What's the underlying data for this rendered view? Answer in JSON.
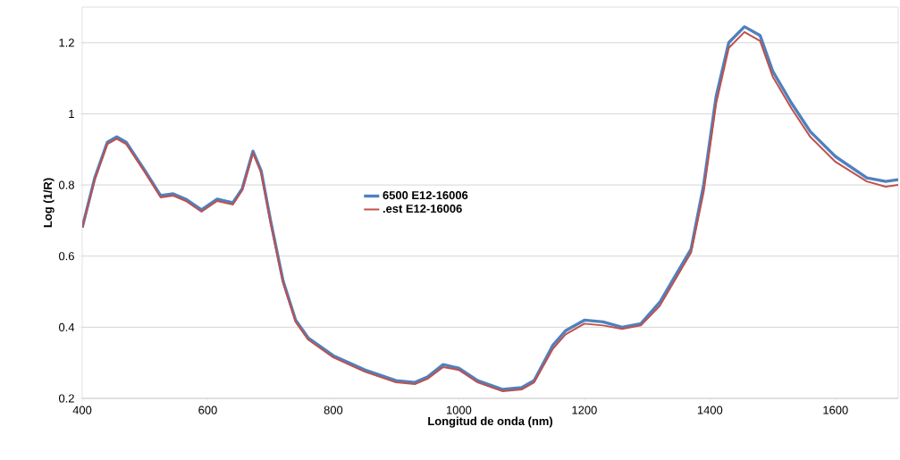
{
  "chart_data": {
    "type": "line",
    "xlabel": "Longitud de onda (nm)",
    "ylabel": "Log (1/R)",
    "xlim": [
      400,
      1700
    ],
    "ylim": [
      0.2,
      1.3
    ],
    "xticks": [
      400,
      600,
      800,
      1000,
      1200,
      1400,
      1600
    ],
    "yticks": [
      0.2,
      0.4,
      0.6,
      0.8,
      1,
      1.2
    ],
    "grid": "y",
    "legend": "center",
    "line_style": "solid",
    "marker": "none",
    "series": [
      {
        "name": "6500 E12-16006",
        "color": "#4f81bd",
        "x": [
          400,
          420,
          440,
          455,
          470,
          500,
          525,
          545,
          565,
          590,
          615,
          640,
          655,
          672,
          685,
          700,
          720,
          740,
          760,
          800,
          850,
          900,
          930,
          950,
          975,
          1000,
          1030,
          1070,
          1100,
          1120,
          1150,
          1170,
          1200,
          1230,
          1260,
          1290,
          1320,
          1350,
          1370,
          1390,
          1410,
          1430,
          1455,
          1480,
          1500,
          1530,
          1560,
          1600,
          1650,
          1680,
          1700
        ],
        "values": [
          0.68,
          0.82,
          0.92,
          0.935,
          0.92,
          0.84,
          0.77,
          0.775,
          0.76,
          0.73,
          0.76,
          0.75,
          0.79,
          0.895,
          0.84,
          0.7,
          0.53,
          0.42,
          0.37,
          0.32,
          0.28,
          0.25,
          0.245,
          0.26,
          0.295,
          0.285,
          0.25,
          0.225,
          0.23,
          0.25,
          0.35,
          0.39,
          0.42,
          0.415,
          0.4,
          0.41,
          0.47,
          0.56,
          0.62,
          0.8,
          1.05,
          1.2,
          1.245,
          1.22,
          1.12,
          1.03,
          0.95,
          0.88,
          0.82,
          0.81,
          0.815
        ]
      },
      {
        "name": ".est E12-16006",
        "color": "#c0504d",
        "x": [
          400,
          420,
          440,
          455,
          470,
          500,
          525,
          545,
          565,
          590,
          615,
          640,
          655,
          672,
          685,
          700,
          720,
          740,
          760,
          800,
          850,
          900,
          930,
          950,
          975,
          1000,
          1030,
          1070,
          1100,
          1120,
          1150,
          1170,
          1200,
          1230,
          1260,
          1290,
          1320,
          1350,
          1370,
          1390,
          1410,
          1430,
          1455,
          1480,
          1500,
          1530,
          1560,
          1600,
          1650,
          1680,
          1700
        ],
        "values": [
          0.68,
          0.815,
          0.915,
          0.93,
          0.915,
          0.835,
          0.765,
          0.77,
          0.755,
          0.725,
          0.755,
          0.745,
          0.785,
          0.89,
          0.835,
          0.695,
          0.525,
          0.415,
          0.365,
          0.315,
          0.275,
          0.245,
          0.24,
          0.255,
          0.288,
          0.28,
          0.245,
          0.22,
          0.225,
          0.245,
          0.34,
          0.38,
          0.41,
          0.405,
          0.395,
          0.405,
          0.46,
          0.55,
          0.61,
          0.78,
          1.03,
          1.185,
          1.23,
          1.205,
          1.105,
          1.015,
          0.935,
          0.865,
          0.81,
          0.795,
          0.8
        ]
      }
    ]
  }
}
